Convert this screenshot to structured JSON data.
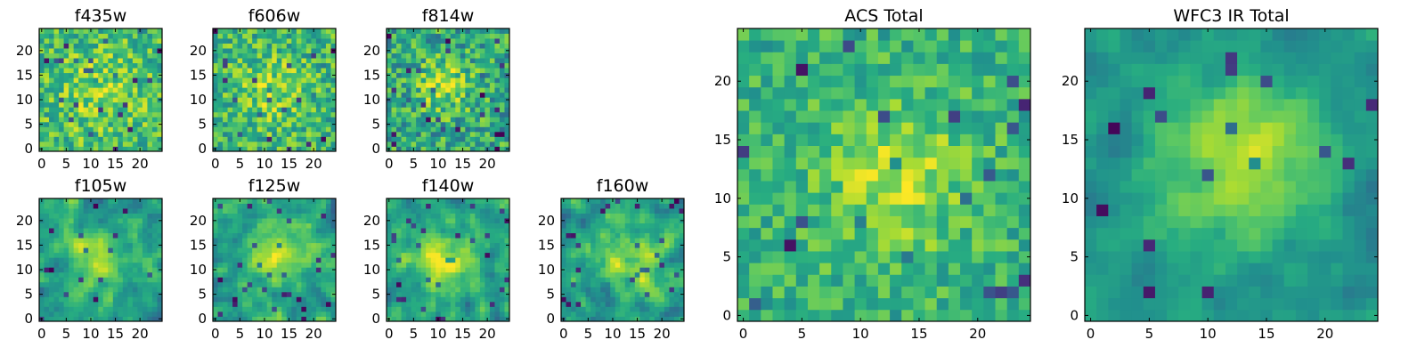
{
  "chart_data": [
    {
      "type": "heatmap",
      "title": "f435w",
      "xticks": [
        "0",
        "5",
        "10",
        "15",
        "20"
      ],
      "yticks": [
        "0",
        "5",
        "10",
        "15",
        "20"
      ],
      "xlim": [
        -0.5,
        24.5
      ],
      "ylim": [
        -0.5,
        24.5
      ],
      "grid_size": 25,
      "center": [
        12,
        12
      ],
      "colormap": "viridis",
      "pattern": {
        "seed": 11,
        "sigma": 6.0,
        "amp": 0.16,
        "base": 0.68,
        "noise": 0.22,
        "smooth": false
      }
    },
    {
      "type": "heatmap",
      "title": "f606w",
      "xticks": [
        "0",
        "5",
        "10",
        "15",
        "20"
      ],
      "yticks": [
        "0",
        "5",
        "10",
        "15",
        "20"
      ],
      "xlim": [
        -0.5,
        24.5
      ],
      "ylim": [
        -0.5,
        24.5
      ],
      "grid_size": 25,
      "center": [
        12,
        12
      ],
      "colormap": "viridis",
      "pattern": {
        "seed": 23,
        "sigma": 5.0,
        "amp": 0.18,
        "base": 0.66,
        "noise": 0.22,
        "smooth": false
      }
    },
    {
      "type": "heatmap",
      "title": "f814w",
      "xticks": [
        "0",
        "5",
        "10",
        "15",
        "20"
      ],
      "yticks": [
        "0",
        "5",
        "10",
        "15",
        "20"
      ],
      "xlim": [
        -0.5,
        24.5
      ],
      "ylim": [
        -0.5,
        24.5
      ],
      "grid_size": 25,
      "center": [
        11,
        13
      ],
      "colormap": "viridis",
      "pattern": {
        "seed": 37,
        "sigma": 4.0,
        "amp": 0.26,
        "base": 0.6,
        "noise": 0.24,
        "smooth": false
      }
    },
    {
      "type": "heatmap",
      "title": "f105w",
      "xticks": [
        "0",
        "5",
        "10",
        "15",
        "20"
      ],
      "yticks": [
        "0",
        "5",
        "10",
        "15",
        "20"
      ],
      "xlim": [
        -0.5,
        24.5
      ],
      "ylim": [
        -0.5,
        24.5
      ],
      "grid_size": 25,
      "center": [
        12,
        12
      ],
      "colormap": "viridis",
      "pattern": {
        "seed": 41,
        "sigma": 3.8,
        "amp": 0.33,
        "base": 0.57,
        "noise": 0.2,
        "smooth": true
      }
    },
    {
      "type": "heatmap",
      "title": "f125w",
      "xticks": [
        "0",
        "5",
        "10",
        "15",
        "20"
      ],
      "yticks": [
        "0",
        "5",
        "10",
        "15",
        "20"
      ],
      "xlim": [
        -0.5,
        24.5
      ],
      "ylim": [
        -0.5,
        24.5
      ],
      "grid_size": 25,
      "center": [
        13,
        13
      ],
      "colormap": "viridis",
      "pattern": {
        "seed": 53,
        "sigma": 4.5,
        "amp": 0.3,
        "base": 0.58,
        "noise": 0.2,
        "smooth": true
      }
    },
    {
      "type": "heatmap",
      "title": "f140w",
      "xticks": [
        "0",
        "5",
        "10",
        "15",
        "20"
      ],
      "yticks": [
        "0",
        "5",
        "10",
        "15",
        "20"
      ],
      "xlim": [
        -0.5,
        24.5
      ],
      "ylim": [
        -0.5,
        24.5
      ],
      "grid_size": 25,
      "center": [
        11,
        12
      ],
      "colormap": "viridis",
      "pattern": {
        "seed": 67,
        "sigma": 4.3,
        "amp": 0.32,
        "base": 0.58,
        "noise": 0.2,
        "smooth": true
      }
    },
    {
      "type": "heatmap",
      "title": "f160w",
      "xticks": [
        "0",
        "5",
        "10",
        "15",
        "20"
      ],
      "yticks": [
        "0",
        "5",
        "10",
        "15",
        "20"
      ],
      "xlim": [
        -0.5,
        24.5
      ],
      "ylim": [
        -0.5,
        24.5
      ],
      "grid_size": 25,
      "center": [
        13,
        12
      ],
      "colormap": "viridis",
      "pattern": {
        "seed": 79,
        "sigma": 4.6,
        "amp": 0.3,
        "base": 0.56,
        "noise": 0.22,
        "smooth": true
      }
    },
    {
      "type": "heatmap",
      "title": "ACS Total",
      "xticks": [
        "0",
        "5",
        "10",
        "15",
        "20"
      ],
      "yticks": [
        "0",
        "5",
        "10",
        "15",
        "20"
      ],
      "xlim": [
        -0.5,
        24.5
      ],
      "ylim": [
        -0.5,
        24.5
      ],
      "grid_size": 25,
      "center": [
        13,
        12
      ],
      "colormap": "viridis",
      "pattern": {
        "seed": 97,
        "sigma": 4.5,
        "amp": 0.25,
        "base": 0.64,
        "noise": 0.16,
        "smooth": false
      }
    },
    {
      "type": "heatmap",
      "title": "WFC3 IR Total",
      "xticks": [
        "0",
        "5",
        "10",
        "15",
        "20"
      ],
      "yticks": [
        "0",
        "5",
        "10",
        "15",
        "20"
      ],
      "xlim": [
        -0.5,
        24.5
      ],
      "ylim": [
        -0.5,
        24.5
      ],
      "grid_size": 25,
      "center": [
        13,
        13
      ],
      "colormap": "viridis",
      "pattern": {
        "seed": 113,
        "sigma": 5.0,
        "amp": 0.38,
        "base": 0.52,
        "noise": 0.12,
        "smooth": true
      }
    }
  ]
}
